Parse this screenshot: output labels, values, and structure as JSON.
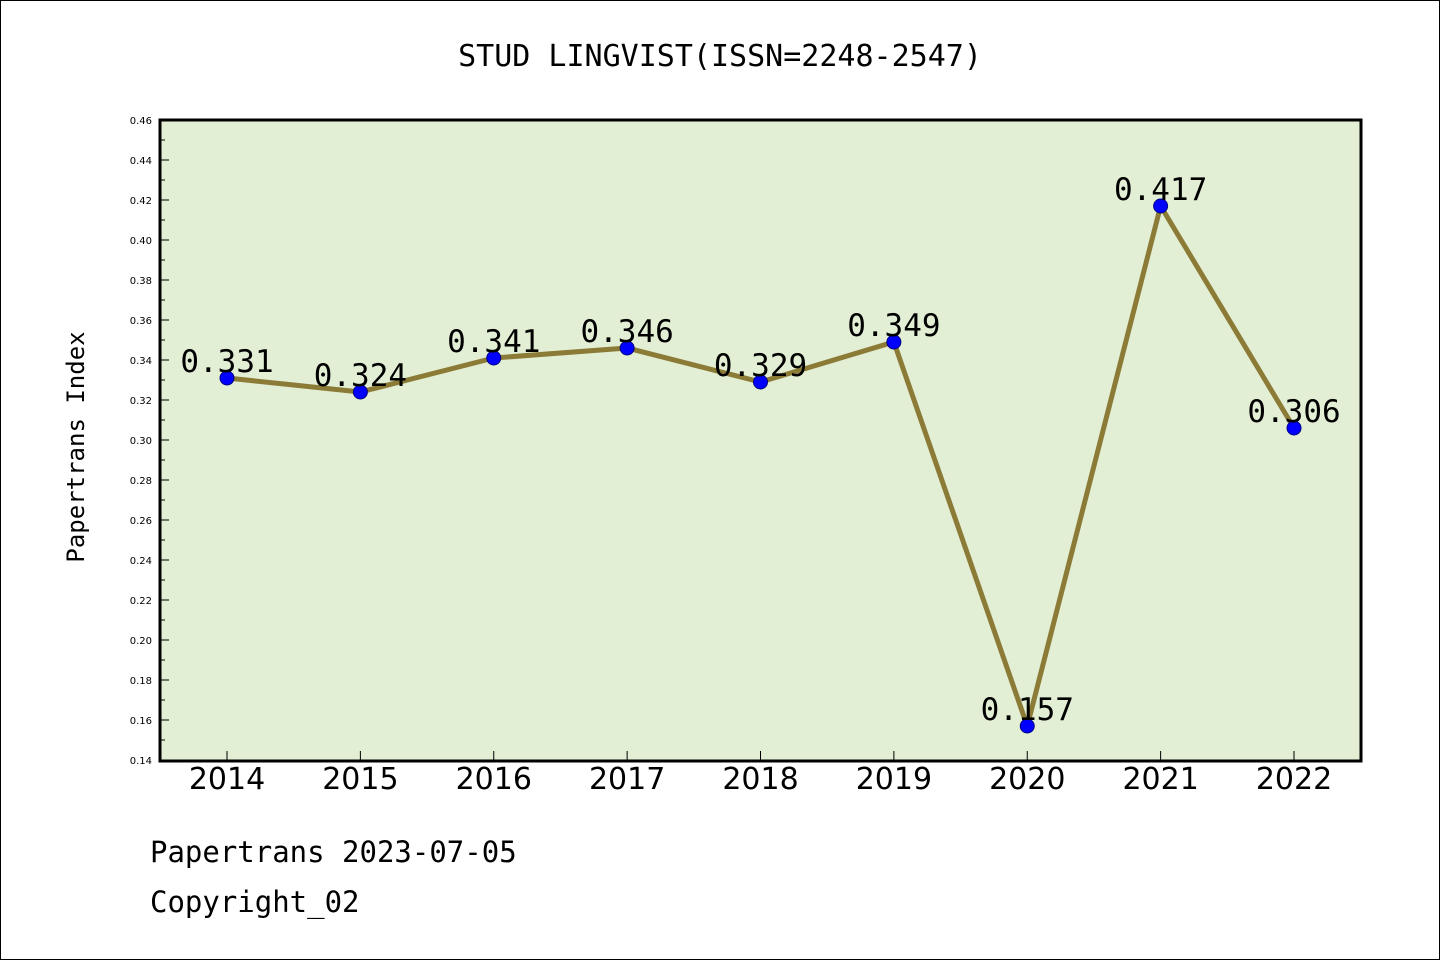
{
  "chart_data": {
    "type": "line",
    "title": "STUD LINGVIST(ISSN=2248-2547)",
    "xlabel": "",
    "ylabel": "Papertrans Index",
    "categories": [
      "2014",
      "2015",
      "2016",
      "2017",
      "2018",
      "2019",
      "2020",
      "2021",
      "2022"
    ],
    "series": [
      {
        "values": [
          0.331,
          0.324,
          0.341,
          0.346,
          0.329,
          0.349,
          0.157,
          0.417,
          0.306
        ]
      }
    ],
    "data_labels": [
      "0.331",
      "0.324",
      "0.341",
      "0.346",
      "0.329",
      "0.349",
      "0.157",
      "0.417",
      "0.306"
    ],
    "ylim": [
      0.14,
      0.46
    ],
    "yticks": [
      "0.14",
      "0.16",
      "0.18",
      "0.20",
      "0.22",
      "0.24",
      "0.26",
      "0.28",
      "0.30",
      "0.32",
      "0.34",
      "0.36",
      "0.38",
      "0.40",
      "0.42",
      "0.44",
      "0.46"
    ],
    "grid": false,
    "legend": "none",
    "colors": {
      "plot_background": "#e2efd5",
      "line": "#8b7b36",
      "marker_fill": "#0000ff",
      "marker_stroke": "#000080"
    }
  },
  "footer": {
    "date_line": "Papertrans 2023-07-05",
    "copyright_line": "Copyright_02"
  }
}
